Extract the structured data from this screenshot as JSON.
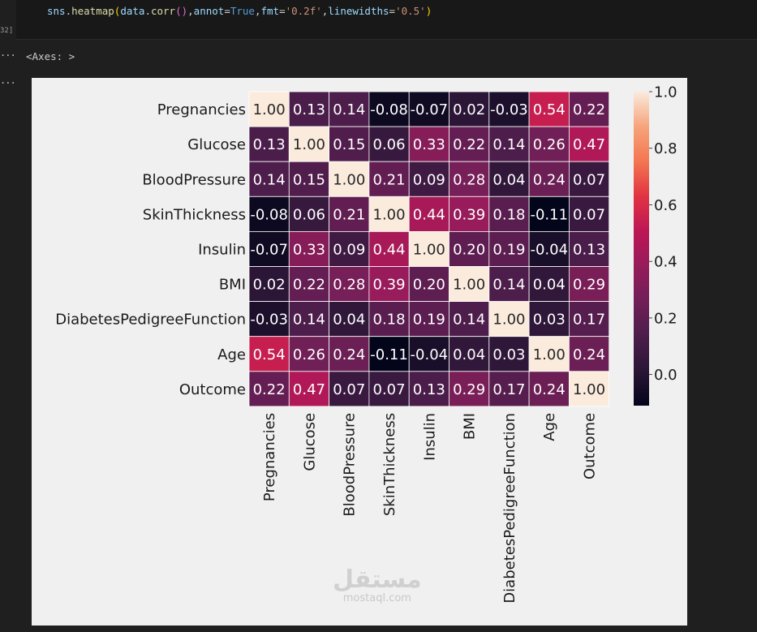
{
  "code": {
    "parts": [
      {
        "t": "sns",
        "c": "#9cdcfe"
      },
      {
        "t": ".",
        "c": "#d4d4d4"
      },
      {
        "t": "heatmap",
        "c": "#dcdcaa"
      },
      {
        "t": "(",
        "c": "#ffd700"
      },
      {
        "t": "data",
        "c": "#9cdcfe"
      },
      {
        "t": ".",
        "c": "#d4d4d4"
      },
      {
        "t": "corr",
        "c": "#dcdcaa"
      },
      {
        "t": "()",
        "c": "#da70d6"
      },
      {
        "t": ",",
        "c": "#d4d4d4"
      },
      {
        "t": "annot",
        "c": "#9cdcfe"
      },
      {
        "t": "=",
        "c": "#d4d4d4"
      },
      {
        "t": "True",
        "c": "#569cd6"
      },
      {
        "t": ",",
        "c": "#d4d4d4"
      },
      {
        "t": "fmt",
        "c": "#9cdcfe"
      },
      {
        "t": "=",
        "c": "#d4d4d4"
      },
      {
        "t": "'0.2f'",
        "c": "#ce9178"
      },
      {
        "t": ",",
        "c": "#d4d4d4"
      },
      {
        "t": "linewidths",
        "c": "#9cdcfe"
      },
      {
        "t": "=",
        "c": "#d4d4d4"
      },
      {
        "t": "'0.5'",
        "c": "#ce9178"
      },
      {
        "t": ")",
        "c": "#ffd700"
      }
    ],
    "exec_count": "32]"
  },
  "gutter_dots": "...",
  "output_text": "<Axes: >",
  "watermark": {
    "logo": "مستقل",
    "sub": "mostaql.com"
  },
  "chart_data": {
    "type": "heatmap",
    "labels": [
      "Pregnancies",
      "Glucose",
      "BloodPressure",
      "SkinThickness",
      "Insulin",
      "BMI",
      "DiabetesPedigreeFunction",
      "Age",
      "Outcome"
    ],
    "values": [
      [
        1.0,
        0.13,
        0.14,
        -0.08,
        -0.07,
        0.02,
        -0.03,
        0.54,
        0.22
      ],
      [
        0.13,
        1.0,
        0.15,
        0.06,
        0.33,
        0.22,
        0.14,
        0.26,
        0.47
      ],
      [
        0.14,
        0.15,
        1.0,
        0.21,
        0.09,
        0.28,
        0.04,
        0.24,
        0.07
      ],
      [
        -0.08,
        0.06,
        0.21,
        1.0,
        0.44,
        0.39,
        0.18,
        -0.11,
        0.07
      ],
      [
        -0.07,
        0.33,
        0.09,
        0.44,
        1.0,
        0.2,
        0.19,
        -0.04,
        0.13
      ],
      [
        0.02,
        0.22,
        0.28,
        0.39,
        0.2,
        1.0,
        0.14,
        0.04,
        0.29
      ],
      [
        -0.03,
        0.14,
        0.04,
        0.18,
        0.19,
        0.14,
        1.0,
        0.03,
        0.17
      ],
      [
        0.54,
        0.26,
        0.24,
        -0.11,
        -0.04,
        0.04,
        0.03,
        1.0,
        0.24
      ],
      [
        0.22,
        0.47,
        0.07,
        0.07,
        0.13,
        0.29,
        0.17,
        0.24,
        1.0
      ]
    ],
    "format": "0.2f",
    "colormap": "rocket",
    "vmin": -0.11,
    "vmax": 1.0,
    "colorbar_ticks": [
      "0.0",
      "0.2",
      "0.4",
      "0.6",
      "0.8",
      "1.0"
    ],
    "colorbar_tick_values": [
      0.0,
      0.2,
      0.4,
      0.6,
      0.8,
      1.0
    ],
    "colormap_stops": [
      "#03051a",
      "#2a1636",
      "#4c1d4b",
      "#711f57",
      "#961c5b",
      "#bd1655",
      "#e13342",
      "#f37651",
      "#f6a47c",
      "#faebdd"
    ],
    "linecolor": "#ffffff",
    "annot_colors": {
      "light": "#ffffff",
      "dark": "#262626"
    },
    "title": "",
    "xlabel": "",
    "ylabel": ""
  }
}
